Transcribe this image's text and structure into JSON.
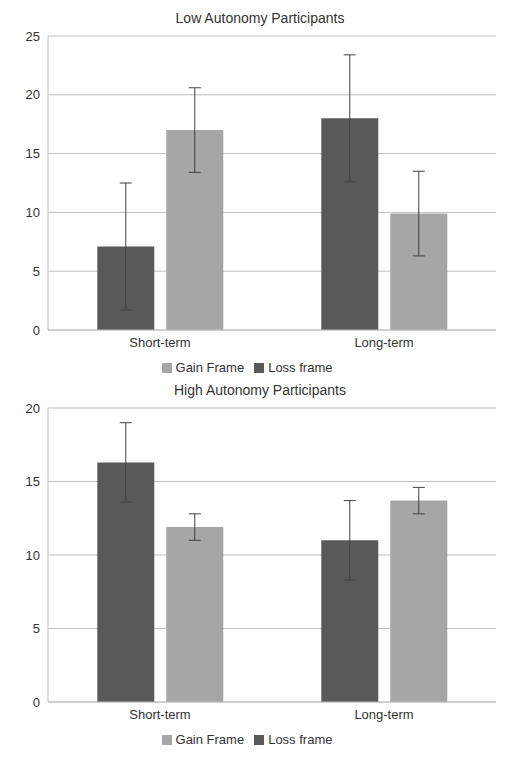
{
  "chart_data": [
    {
      "type": "bar",
      "title": "Low Autonomy Participants",
      "categories": [
        "Short-term",
        "Long-term"
      ],
      "series": [
        {
          "name": "Loss frame",
          "color": "#595959",
          "values": [
            7.1,
            18.0
          ],
          "errors": [
            5.4,
            5.4
          ]
        },
        {
          "name": "Gain Frame",
          "color": "#a6a6a6",
          "values": [
            17.0,
            9.9
          ],
          "errors": [
            3.6,
            3.6
          ]
        }
      ],
      "ylim": [
        0,
        25
      ],
      "yticks": [
        0,
        5,
        10,
        15,
        20,
        25
      ],
      "grid": true,
      "legend": "bottom"
    },
    {
      "type": "bar",
      "title": "High Autonomy Participants",
      "categories": [
        "Short-term",
        "Long-term"
      ],
      "series": [
        {
          "name": "Loss frame",
          "color": "#595959",
          "values": [
            16.3,
            11.0
          ],
          "errors": [
            2.7,
            2.7
          ]
        },
        {
          "name": "Gain Frame",
          "color": "#a6a6a6",
          "values": [
            11.9,
            13.7
          ],
          "errors": [
            0.9,
            0.9
          ]
        }
      ],
      "ylim": [
        0,
        20
      ],
      "yticks": [
        0,
        5,
        10,
        15,
        20
      ],
      "grid": true,
      "legend": "bottom"
    }
  ]
}
